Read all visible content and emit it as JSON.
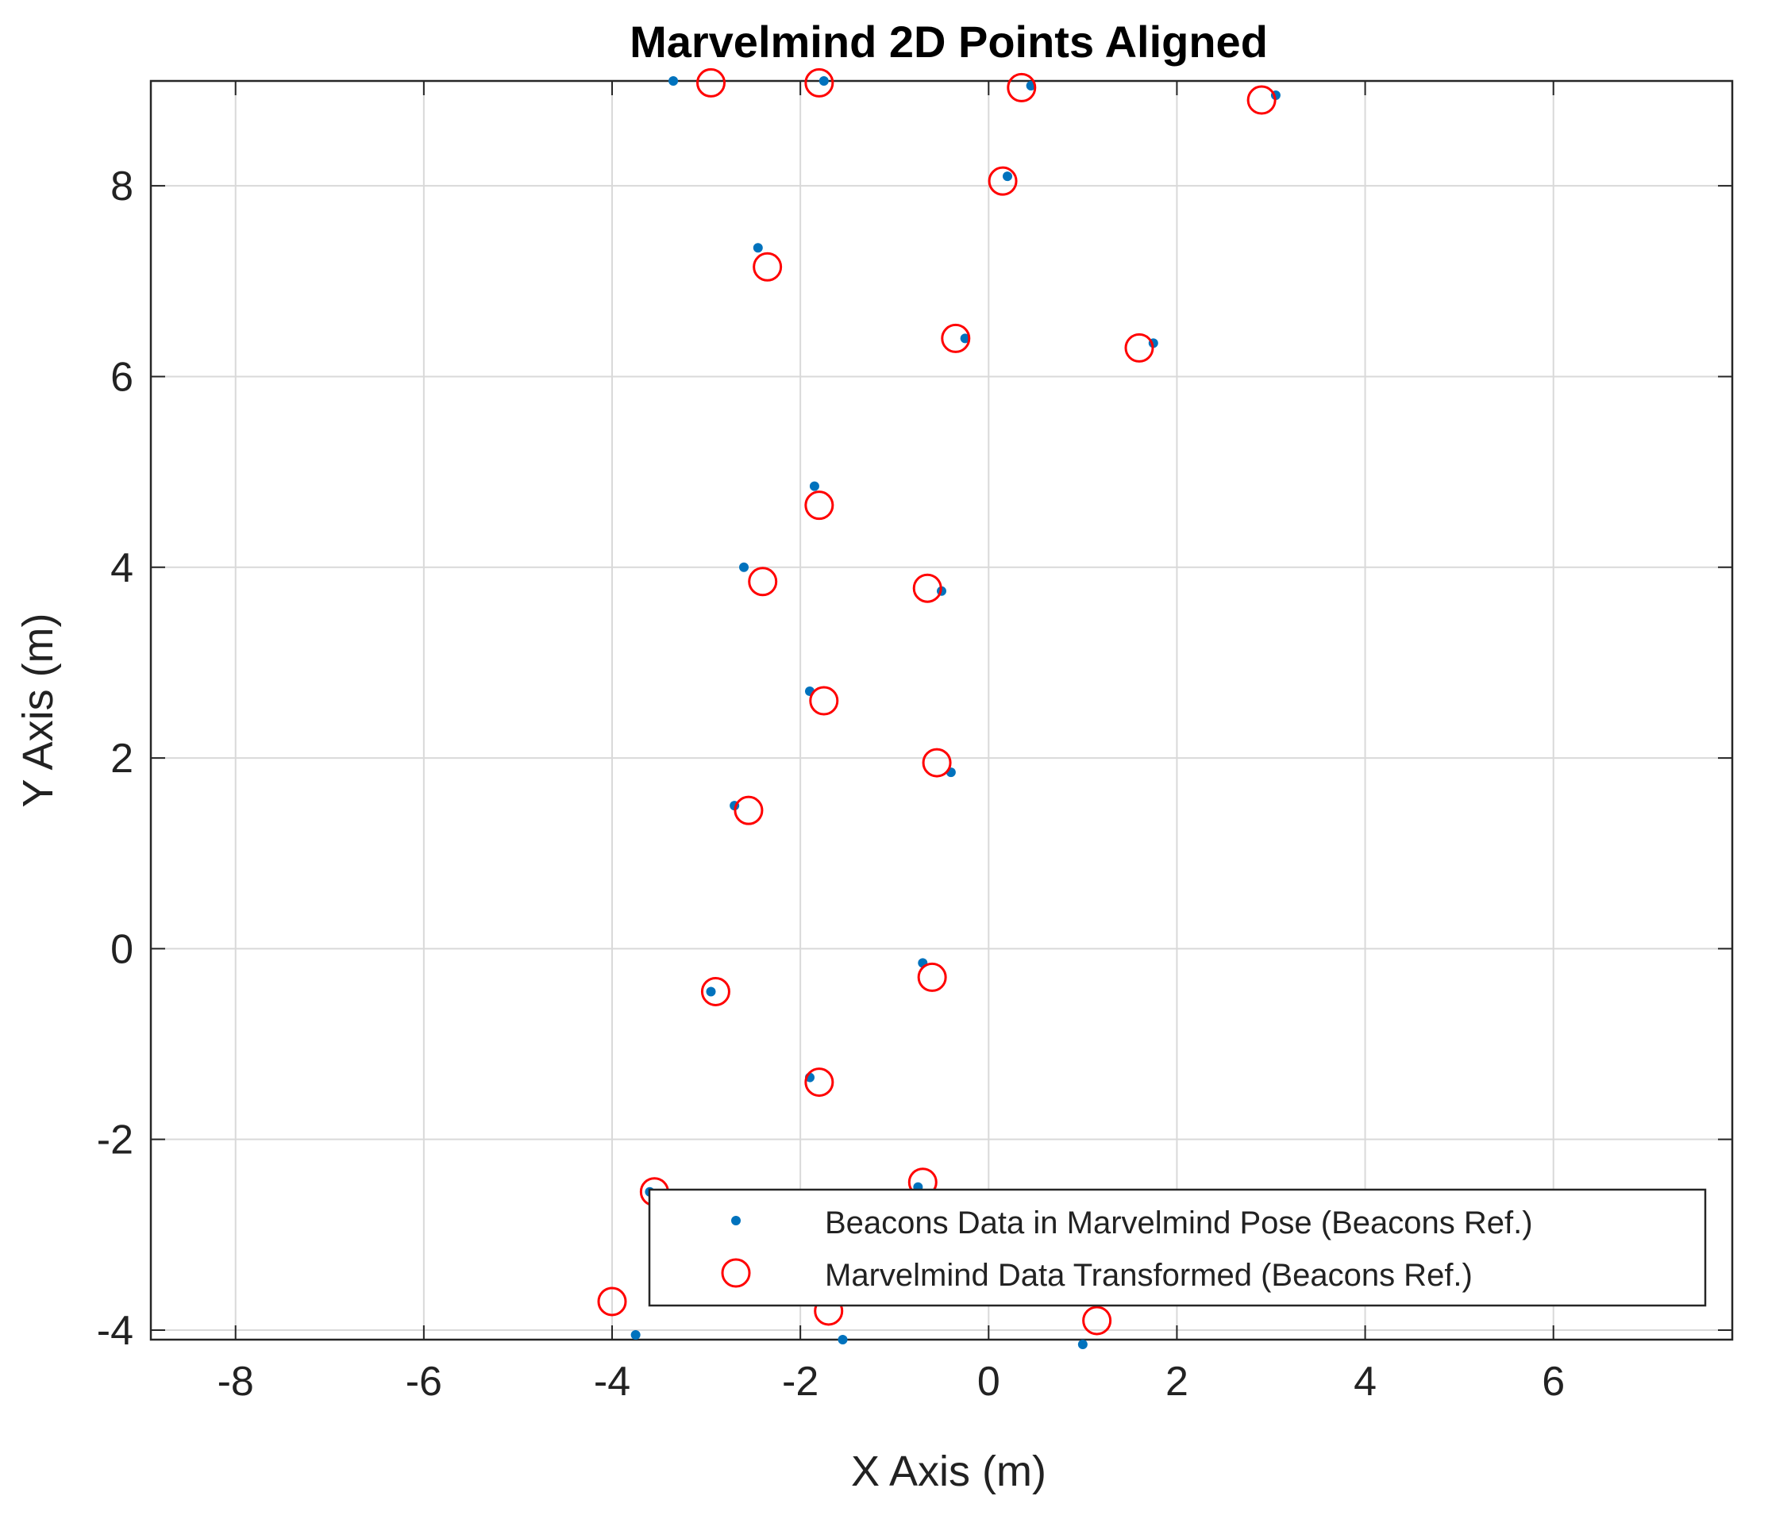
{
  "chart_data": {
    "type": "scatter",
    "title": "Marvelmind 2D Points Aligned",
    "xlabel": "X Axis (m)",
    "ylabel": "Y Axis (m)",
    "xlim": [
      -8.9,
      7.9
    ],
    "ylim": [
      -4.1,
      9.1
    ],
    "xticks": [
      -8,
      -6,
      -4,
      -2,
      0,
      2,
      4,
      6
    ],
    "yticks": [
      -4,
      -2,
      0,
      2,
      4,
      6,
      8
    ],
    "xtick_labels": [
      "-8",
      "-6",
      "-4",
      "-2",
      "0",
      "2",
      "4",
      "6"
    ],
    "ytick_labels": [
      "-4",
      "-2",
      "0",
      "2",
      "4",
      "6",
      "8"
    ],
    "grid": true,
    "legend_position": "bottom-right",
    "series": [
      {
        "name": "Beacons Data in Marvelmind Pose (Beacons Ref.)",
        "marker": "dot",
        "color": "#0072BD",
        "points": [
          {
            "x": -3.35,
            "y": 9.1
          },
          {
            "x": -1.75,
            "y": 9.1
          },
          {
            "x": 0.45,
            "y": 9.05
          },
          {
            "x": 3.05,
            "y": 8.95
          },
          {
            "x": 0.2,
            "y": 8.1
          },
          {
            "x": -2.45,
            "y": 7.35
          },
          {
            "x": -0.25,
            "y": 6.4
          },
          {
            "x": 1.75,
            "y": 6.35
          },
          {
            "x": -1.85,
            "y": 4.85
          },
          {
            "x": -2.6,
            "y": 4.0
          },
          {
            "x": -0.5,
            "y": 3.75
          },
          {
            "x": -1.9,
            "y": 2.7
          },
          {
            "x": -0.4,
            "y": 1.85
          },
          {
            "x": -2.7,
            "y": 1.5
          },
          {
            "x": -0.7,
            "y": -0.15
          },
          {
            "x": -2.95,
            "y": -0.45
          },
          {
            "x": -1.9,
            "y": -1.35
          },
          {
            "x": -0.75,
            "y": -2.5
          },
          {
            "x": -3.6,
            "y": -2.55
          },
          {
            "x": -3.75,
            "y": -4.05
          },
          {
            "x": -1.55,
            "y": -4.1
          },
          {
            "x": 1.0,
            "y": -4.15
          }
        ]
      },
      {
        "name": "Marvelmind Data Transformed (Beacons Ref.)",
        "marker": "circle",
        "color": "#FF0000",
        "points": [
          {
            "x": -2.95,
            "y": 9.08
          },
          {
            "x": -1.8,
            "y": 9.08
          },
          {
            "x": 0.35,
            "y": 9.03
          },
          {
            "x": 2.9,
            "y": 8.9
          },
          {
            "x": 0.15,
            "y": 8.05
          },
          {
            "x": -2.35,
            "y": 7.15
          },
          {
            "x": -0.35,
            "y": 6.4
          },
          {
            "x": 1.6,
            "y": 6.3
          },
          {
            "x": -1.8,
            "y": 4.65
          },
          {
            "x": -2.4,
            "y": 3.85
          },
          {
            "x": -0.65,
            "y": 3.78
          },
          {
            "x": -1.75,
            "y": 2.6
          },
          {
            "x": -0.55,
            "y": 1.95
          },
          {
            "x": -2.55,
            "y": 1.45
          },
          {
            "x": -0.6,
            "y": -0.3
          },
          {
            "x": -2.9,
            "y": -0.45
          },
          {
            "x": -1.8,
            "y": -1.4
          },
          {
            "x": -0.7,
            "y": -2.45
          },
          {
            "x": -3.55,
            "y": -2.55
          },
          {
            "x": -4.0,
            "y": -3.7
          },
          {
            "x": -1.7,
            "y": -3.8
          },
          {
            "x": 1.15,
            "y": -3.9
          }
        ]
      }
    ]
  }
}
